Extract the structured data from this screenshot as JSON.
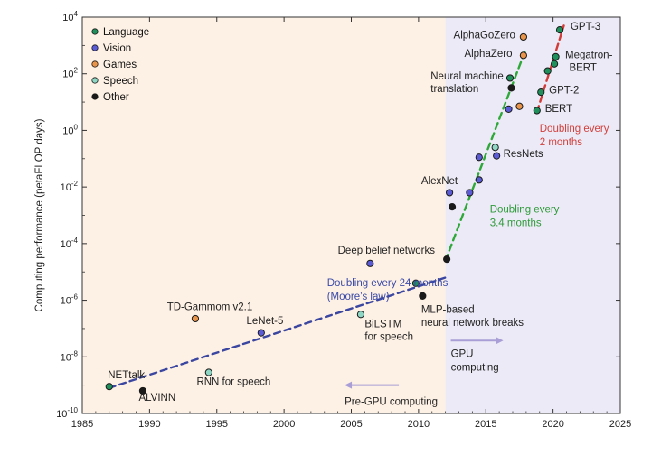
{
  "colors": {
    "language": "#1f8f5b",
    "vision": "#5b5bd6",
    "games": "#e8944a",
    "speech": "#8fd6c4",
    "other": "#1a1a1a",
    "pre_gpu_bg": "#fdf0e4",
    "gpu_bg": "#eceaf6",
    "moore_line": "#3a46a0",
    "gpu_line": "#2fa83a",
    "recent_line": "#d23c38",
    "arrow": "#a99fd6"
  },
  "chart_data": {
    "type": "scatter",
    "title": "",
    "xlabel": "",
    "ylabel": "Computing performance (petaFLOP days)",
    "xlim": [
      1985,
      2025
    ],
    "ylim_log10": [
      -10,
      4
    ],
    "log_scale_y": true,
    "x_ticks": [
      "1985",
      "1990",
      "1995",
      "2000",
      "2005",
      "2010",
      "2015",
      "2020",
      "2025"
    ],
    "y_ticks": [
      {
        "base": "10",
        "exp": "4"
      },
      {
        "base": "10",
        "exp": "2"
      },
      {
        "base": "10",
        "exp": "0"
      },
      {
        "base": "10",
        "exp": "-2"
      },
      {
        "base": "10",
        "exp": "-4"
      },
      {
        "base": "10",
        "exp": "-6"
      },
      {
        "base": "10",
        "exp": "-8"
      },
      {
        "base": "10",
        "exp": "-10"
      }
    ],
    "legend": {
      "placement": "top-left",
      "entries": [
        {
          "key": "language",
          "label": "Language"
        },
        {
          "key": "vision",
          "label": "Vision"
        },
        {
          "key": "games",
          "label": "Games"
        },
        {
          "key": "speech",
          "label": "Speech"
        },
        {
          "key": "other",
          "label": "Other"
        }
      ]
    },
    "era_split_year": 2012,
    "points": [
      {
        "x": 1987,
        "y_log10": -9.05,
        "category": "language"
      },
      {
        "x": 1989.5,
        "y_log10": -9.2,
        "category": "other"
      },
      {
        "x": 1993.4,
        "y_log10": -6.65,
        "category": "games"
      },
      {
        "x": 1994.4,
        "y_log10": -8.55,
        "category": "speech"
      },
      {
        "x": 1998.3,
        "y_log10": -7.15,
        "category": "vision"
      },
      {
        "x": 2005.7,
        "y_log10": -6.5,
        "category": "speech"
      },
      {
        "x": 2006.4,
        "y_log10": -4.7,
        "category": "vision"
      },
      {
        "x": 2009.8,
        "y_log10": -5.4,
        "category": "language"
      },
      {
        "x": 2010.3,
        "y_log10": -5.85,
        "category": "other"
      },
      {
        "x": 2012.1,
        "y_log10": -4.55,
        "category": "other"
      },
      {
        "x": 2012.3,
        "y_log10": -2.2,
        "category": "vision"
      },
      {
        "x": 2012.5,
        "y_log10": -2.7,
        "category": "other"
      },
      {
        "x": 2013.8,
        "y_log10": -2.2,
        "category": "vision"
      },
      {
        "x": 2014.5,
        "y_log10": -1.75,
        "category": "vision"
      },
      {
        "x": 2014.5,
        "y_log10": -0.95,
        "category": "vision"
      },
      {
        "x": 2015.7,
        "y_log10": -0.6,
        "category": "speech"
      },
      {
        "x": 2015.8,
        "y_log10": -0.9,
        "category": "vision"
      },
      {
        "x": 2016.7,
        "y_log10": 0.75,
        "category": "vision"
      },
      {
        "x": 2016.8,
        "y_log10": 1.85,
        "category": "language"
      },
      {
        "x": 2016.9,
        "y_log10": 1.5,
        "category": "other"
      },
      {
        "x": 2017.5,
        "y_log10": 0.85,
        "category": "games"
      },
      {
        "x": 2017.8,
        "y_log10": 2.65,
        "category": "games"
      },
      {
        "x": 2017.8,
        "y_log10": 3.3,
        "category": "games"
      },
      {
        "x": 2018.8,
        "y_log10": 0.7,
        "category": "language"
      },
      {
        "x": 2019.1,
        "y_log10": 1.35,
        "category": "language"
      },
      {
        "x": 2019.6,
        "y_log10": 2.1,
        "category": "language"
      },
      {
        "x": 2020.1,
        "y_log10": 2.35,
        "category": "language"
      },
      {
        "x": 2020.2,
        "y_log10": 2.6,
        "category": "language"
      },
      {
        "x": 2020.5,
        "y_log10": 3.55,
        "category": "language"
      }
    ],
    "point_labels": [
      {
        "text": "NETtalk",
        "x": 1986.9,
        "y_log10": -8.75
      },
      {
        "text": "ALVINN",
        "x": 1989.2,
        "y_log10": -9.55
      },
      {
        "text": "TD-Gammom v2.1",
        "x": 1991.3,
        "y_log10": -6.35
      },
      {
        "text": "RNN for speech",
        "x": 1993.5,
        "y_log10": -9.0
      },
      {
        "text": "LeNet-5",
        "x": 1997.2,
        "y_log10": -6.85
      },
      {
        "text": "BiLSTM",
        "x": 2006.0,
        "y_log10": -6.95
      },
      {
        "text": "for speech",
        "x": 2006.0,
        "y_log10": -7.4
      },
      {
        "text": "Deep belief networks",
        "x": 2004.0,
        "y_log10": -4.35
      },
      {
        "text": "MLP-based",
        "x": 2010.2,
        "y_log10": -6.45
      },
      {
        "text": "neural network breaks",
        "x": 2010.2,
        "y_log10": -6.9
      },
      {
        "text": "AlexNet",
        "x": 2010.2,
        "y_log10": -1.9
      },
      {
        "text": "ResNets",
        "x": 2016.3,
        "y_log10": -0.95
      },
      {
        "text": "Neural machine",
        "x": 2010.9,
        "y_log10": 1.8
      },
      {
        "text": "translation",
        "x": 2010.9,
        "y_log10": 1.35
      },
      {
        "text": "AlphaZero",
        "x": 2013.4,
        "y_log10": 2.6
      },
      {
        "text": "AlphaGoZero",
        "x": 2012.6,
        "y_log10": 3.25
      },
      {
        "text": "GPT-3",
        "x": 2021.3,
        "y_log10": 3.55
      },
      {
        "text": "Megatron-",
        "x": 2020.9,
        "y_log10": 2.55
      },
      {
        "text": "BERT",
        "x": 2021.2,
        "y_log10": 2.1
      },
      {
        "text": "GPT-2",
        "x": 2019.7,
        "y_log10": 1.3
      },
      {
        "text": "BERT",
        "x": 2019.4,
        "y_log10": 0.65
      }
    ],
    "trend_lines": [
      {
        "key": "moore",
        "from": {
          "x": 1987,
          "y_log10": -9.1
        },
        "to": {
          "x": 2012,
          "y_log10": -5.2
        }
      },
      {
        "key": "gpu",
        "from": {
          "x": 2012,
          "y_log10": -4.6
        },
        "to": {
          "x": 2018,
          "y_log10": 2.9
        }
      },
      {
        "key": "recent",
        "from": {
          "x": 2018.8,
          "y_log10": 0.65
        },
        "to": {
          "x": 2020.8,
          "y_log10": 3.7
        }
      }
    ],
    "annotations": [
      {
        "key": "moore",
        "lines": [
          "Doubling every 24 months",
          "(Moore’s law)"
        ],
        "x": 2003.2,
        "y_log10": -5.5
      },
      {
        "key": "gpu",
        "lines": [
          "Doubling every",
          "3.4 months"
        ],
        "x": 2015.3,
        "y_log10": -2.9
      },
      {
        "key": "recent",
        "lines": [
          "Doubling every",
          "2 months"
        ],
        "x": 2019.0,
        "y_log10": -0.05
      }
    ],
    "era_labels": [
      {
        "text_lines": [
          "GPU",
          "computing"
        ],
        "x": 2012.4,
        "y_log10": -8.0,
        "arrow": "right"
      },
      {
        "text_lines": [
          "Pre-GPU computing"
        ],
        "x": 2004.5,
        "y_log10": -9.7,
        "arrow": "left"
      }
    ]
  }
}
